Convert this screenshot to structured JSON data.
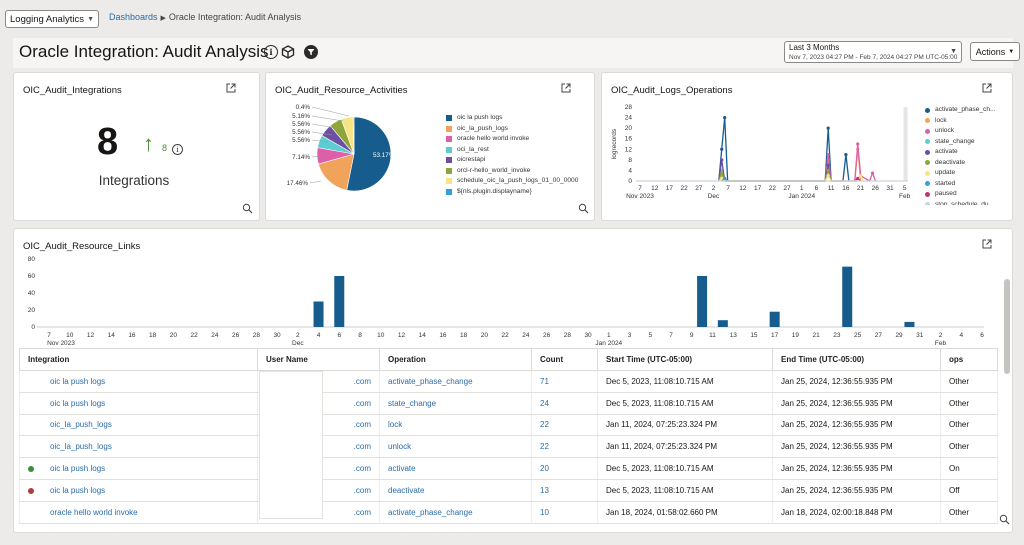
{
  "topbar": {
    "app_select": "Logging Analytics",
    "breadcrumb_link": "Dashboards",
    "breadcrumb_current": "Oracle Integration: Audit Analysis"
  },
  "header": {
    "title": "Oracle Integration: Audit Analysis",
    "icons": [
      "info-icon",
      "cube-icon",
      "filter-icon"
    ],
    "date_range_label": "Last 3 Months",
    "date_range_value": "Nov 7, 2023 04:27 PM - Feb 7, 2024 04:27 PM UTC-05:00",
    "actions_label": "Actions"
  },
  "widgets": {
    "integrations": {
      "title": "OIC_Audit_Integrations",
      "value": "8",
      "trend_value": "8",
      "label": "Integrations",
      "trend_color": "#4a8a3a"
    },
    "resource_activities": {
      "title": "OIC_Audit_Resource_Activities",
      "slice_labels": [
        "0.4%",
        "5.16%",
        "5.56%",
        "5.56%",
        "5.56%",
        "7.14%",
        "17.46%",
        "53.17%"
      ]
    },
    "logs_operations": {
      "title": "OIC_Audit_Logs_Operations",
      "ylabel": "logrecords"
    },
    "resource_links": {
      "title": "OIC_Audit_Resource_Links"
    }
  },
  "chart_data": [
    {
      "type": "pie",
      "title": "OIC_Audit_Resource_Activities",
      "legend_position": "right",
      "categories": [
        "oic la push logs",
        "oic_la_push_logs",
        "oracle hello world invoke",
        "oci_la_rest",
        "oicrestapi",
        "orcl-r-hello_world_invoke",
        "schedule_oic_la_push_logs_01_00_0000",
        "${nls.plugin.displayname}"
      ],
      "values": [
        53.17,
        17.46,
        7.14,
        5.56,
        5.56,
        5.56,
        5.16,
        0.4
      ],
      "colors": [
        "#165d8d",
        "#f2a35b",
        "#dd5fa9",
        "#5ecdd1",
        "#6d4fa4",
        "#8ea53a",
        "#f7e585",
        "#2fa2d8"
      ]
    },
    {
      "type": "line",
      "title": "OIC_Audit_Logs_Operations",
      "ylabel": "logrecords",
      "ylim": [
        0,
        28
      ],
      "y_ticks": [
        "28",
        "24",
        "20",
        "16",
        "12",
        "8",
        "4",
        "0"
      ],
      "x_tick_labels": [
        "7",
        "12",
        "17",
        "22",
        "27",
        "2",
        "7",
        "12",
        "17",
        "22",
        "27",
        "1",
        "6",
        "11",
        "16",
        "21",
        "26",
        "31",
        "5"
      ],
      "x_month_labels": [
        {
          "label": "Nov 2023",
          "under": "7"
        },
        {
          "label": "Dec",
          "under": "2"
        },
        {
          "label": "Jan 2024",
          "under": "1"
        },
        {
          "label": "Feb",
          "under": "5"
        }
      ],
      "legend_position": "right",
      "legend": [
        "activate_phase_ch...",
        "lock",
        "unlock",
        "state_change",
        "activate",
        "deactivate",
        "update",
        "started",
        "paused",
        "stop_schedule_du..."
      ],
      "series": [
        {
          "name": "activate_phase_ch...",
          "color": "#165d8d",
          "points": [
            [
              28,
              0
            ],
            [
              29,
              12
            ],
            [
              30,
              24
            ],
            [
              31,
              0
            ],
            [
              64,
              0
            ],
            [
              65,
              20
            ],
            [
              66,
              0
            ],
            [
              70,
              0
            ],
            [
              71,
              10
            ],
            [
              72,
              0
            ]
          ]
        },
        {
          "name": "lock",
          "color": "#f2a35b",
          "points": [
            [
              28,
              0
            ],
            [
              29,
              2
            ],
            [
              30,
              0
            ],
            [
              64,
              0
            ],
            [
              65,
              8
            ],
            [
              66,
              0
            ],
            [
              74,
              0
            ],
            [
              75,
              12
            ],
            [
              76,
              0
            ]
          ]
        },
        {
          "name": "unlock",
          "color": "#dd5fa9",
          "points": [
            [
              64,
              0
            ],
            [
              65,
              10
            ],
            [
              66,
              0
            ],
            [
              74,
              0
            ],
            [
              75,
              14
            ],
            [
              76,
              2
            ],
            [
              79,
              0
            ],
            [
              80,
              3
            ],
            [
              81,
              0
            ]
          ]
        },
        {
          "name": "state_change",
          "color": "#5ecdd1",
          "points": [
            [
              28,
              0
            ],
            [
              29,
              4
            ],
            [
              30,
              0
            ],
            [
              64,
              0
            ],
            [
              65,
              5
            ],
            [
              66,
              0
            ]
          ]
        },
        {
          "name": "activate",
          "color": "#6d4fa4",
          "points": [
            [
              28,
              0
            ],
            [
              29,
              8
            ],
            [
              30,
              0
            ],
            [
              64,
              0
            ],
            [
              65,
              6
            ],
            [
              66,
              0
            ]
          ]
        },
        {
          "name": "deactivate",
          "color": "#8ea53a",
          "points": [
            [
              28,
              0
            ],
            [
              29,
              3
            ],
            [
              30,
              0
            ],
            [
              64,
              0
            ],
            [
              65,
              4
            ],
            [
              66,
              0
            ]
          ]
        },
        {
          "name": "update",
          "color": "#f7e585",
          "points": [
            [
              28,
              0
            ],
            [
              29,
              1
            ],
            [
              30,
              0
            ],
            [
              64,
              0
            ],
            [
              65,
              2
            ],
            [
              66,
              0
            ],
            [
              75,
              0
            ],
            [
              76,
              2
            ],
            [
              77,
              0
            ]
          ]
        },
        {
          "name": "started",
          "color": "#2fa2d8",
          "points": [
            [
              29,
              0
            ],
            [
              30,
              1
            ],
            [
              31,
              0
            ]
          ]
        },
        {
          "name": "paused",
          "color": "#c2356f",
          "points": [
            [
              74,
              0
            ],
            [
              75,
              1
            ],
            [
              76,
              0
            ]
          ]
        },
        {
          "name": "stop_schedule_du...",
          "color": "#c9d3dc",
          "points": [
            [
              0,
              0
            ],
            [
              92,
              0
            ]
          ]
        }
      ]
    },
    {
      "type": "bar",
      "title": "OIC_Audit_Resource_Links",
      "ylim": [
        0,
        80
      ],
      "y_ticks": [
        "80",
        "60",
        "40",
        "20",
        "0"
      ],
      "x_tick_labels": [
        "7",
        "10",
        "12",
        "14",
        "16",
        "18",
        "20",
        "22",
        "24",
        "26",
        "28",
        "30",
        "2",
        "4",
        "6",
        "8",
        "10",
        "12",
        "14",
        "16",
        "18",
        "20",
        "22",
        "24",
        "26",
        "28",
        "30",
        "1",
        "3",
        "5",
        "7",
        "9",
        "11",
        "13",
        "15",
        "17",
        "19",
        "21",
        "23",
        "25",
        "27",
        "29",
        "31",
        "2",
        "4",
        "6"
      ],
      "x_month_labels": [
        {
          "label": "Nov 2023",
          "under": "7"
        },
        {
          "label": "Dec",
          "under": "2"
        },
        {
          "label": "Jan 2024",
          "under": "1"
        },
        {
          "label": "Feb",
          "under": "2"
        }
      ],
      "bars": [
        {
          "day": 27,
          "value": 30
        },
        {
          "day": 29,
          "value": 60
        },
        {
          "day": 64,
          "value": 60
        },
        {
          "day": 66,
          "value": 8
        },
        {
          "day": 71,
          "value": 18
        },
        {
          "day": 78,
          "value": 71
        },
        {
          "day": 84,
          "value": 6
        }
      ],
      "color": "#165d8d"
    }
  ],
  "table": {
    "columns": [
      "Integration",
      "User Name",
      "Operation",
      "Count",
      "Start Time (UTC-05:00)",
      "End Time (UTC-05:00)",
      "ops"
    ],
    "rows": [
      {
        "dot": "",
        "integration": "oic la push logs",
        "user": ".com",
        "operation": "activate_phase_change",
        "count": "71",
        "start": "Dec 5, 2023, 11:08:10.715 AM",
        "end": "Jan 25, 2024, 12:36:55.935 PM",
        "ops": "Other"
      },
      {
        "dot": "",
        "integration": "oic la push logs",
        "user": ".com",
        "operation": "state_change",
        "count": "24",
        "start": "Dec 5, 2023, 11:08:10.715 AM",
        "end": "Jan 25, 2024, 12:36:55.935 PM",
        "ops": "Other"
      },
      {
        "dot": "",
        "integration": "oic_la_push_logs",
        "user": ".com",
        "operation": "lock",
        "count": "22",
        "start": "Jan 11, 2024, 07:25:23.324 PM",
        "end": "Jan 25, 2024, 12:36:55.935 PM",
        "ops": "Other"
      },
      {
        "dot": "",
        "integration": "oic_la_push_logs",
        "user": ".com",
        "operation": "unlock",
        "count": "22",
        "start": "Jan 11, 2024, 07:25:23.324 PM",
        "end": "Jan 25, 2024, 12:36:55.935 PM",
        "ops": "Other"
      },
      {
        "dot": "#3c8f3c",
        "integration": "oic la push logs",
        "user": ".com",
        "operation": "activate",
        "count": "20",
        "start": "Dec 5, 2023, 11:08:10.715 AM",
        "end": "Jan 25, 2024, 12:36:55.935 PM",
        "ops": "On"
      },
      {
        "dot": "#b23a3a",
        "integration": "oic la push logs",
        "user": ".com",
        "operation": "deactivate",
        "count": "13",
        "start": "Dec 5, 2023, 11:08:10.715 AM",
        "end": "Jan 25, 2024, 12:36:55.935 PM",
        "ops": "Off"
      },
      {
        "dot": "",
        "integration": "oracle hello world invoke",
        "user": ".com",
        "operation": "activate_phase_change",
        "count": "10",
        "start": "Jan 18, 2024, 01:58:02.660 PM",
        "end": "Jan 18, 2024, 02:00:18.848 PM",
        "ops": "Other"
      }
    ]
  },
  "colors": {
    "link": "#2a6ca8",
    "accent_bar": "#165d8d"
  }
}
